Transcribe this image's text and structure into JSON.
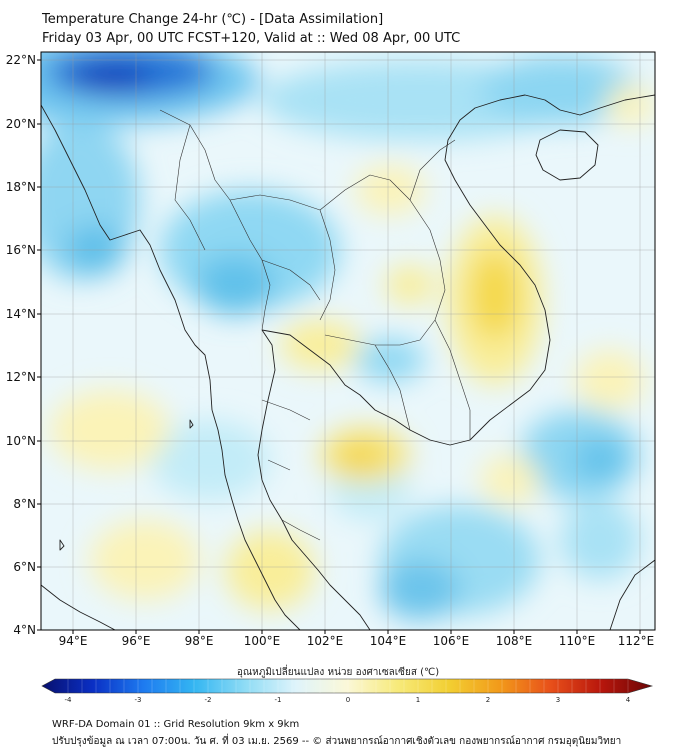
{
  "header": {
    "title": "Temperature Change 24-hr (℃) - [Data Assimilation]",
    "subtitle": "Friday 03 Apr, 00 UTC FCST+120, Valid at :: Wed 08 Apr, 00 UTC"
  },
  "map": {
    "lon_labels": [
      "94°E",
      "96°E",
      "98°E",
      "100°E",
      "102°E",
      "104°E",
      "106°E",
      "108°E",
      "110°E",
      "112°E"
    ],
    "lat_labels": [
      "22°N",
      "20°N",
      "18°N",
      "16°N",
      "14°N",
      "12°N",
      "10°N",
      "8°N",
      "6°N",
      "4°N"
    ],
    "lon_range": [
      93,
      112.5
    ],
    "lat_range": [
      4,
      22.3
    ]
  },
  "colorbar": {
    "label": "อุณหภูมิเปลี่ยนแปลง หน่วย องศาเซลเซียส (℃)",
    "ticks": [
      "-4",
      "-3",
      "-2",
      "-1",
      "0",
      "1",
      "2",
      "3",
      "4"
    ],
    "range": [
      -4,
      4
    ],
    "colors": [
      "#08106e",
      "#0a2fc4",
      "#1e7bf0",
      "#34b6f2",
      "#8fdcf5",
      "#dff4fb",
      "#fbf8d8",
      "#f7ea7a",
      "#f2cf32",
      "#f29a1a",
      "#e8501a",
      "#b8160c",
      "#6a0606"
    ]
  },
  "footer": {
    "line1": "WRF-DA Domain 01 :: Grid Resolution 9km x 9km",
    "line2": "ปรับปรุงข้อมูล ณ เวลา 07:00น. วัน ศ. ที่ 03 เม.ย. 2569 -- © ส่วนพยากรณ์อากาศเชิงตัวเลข กองพยากรณ์อากาศ กรมอุตุนิยมวิทยา"
  }
}
